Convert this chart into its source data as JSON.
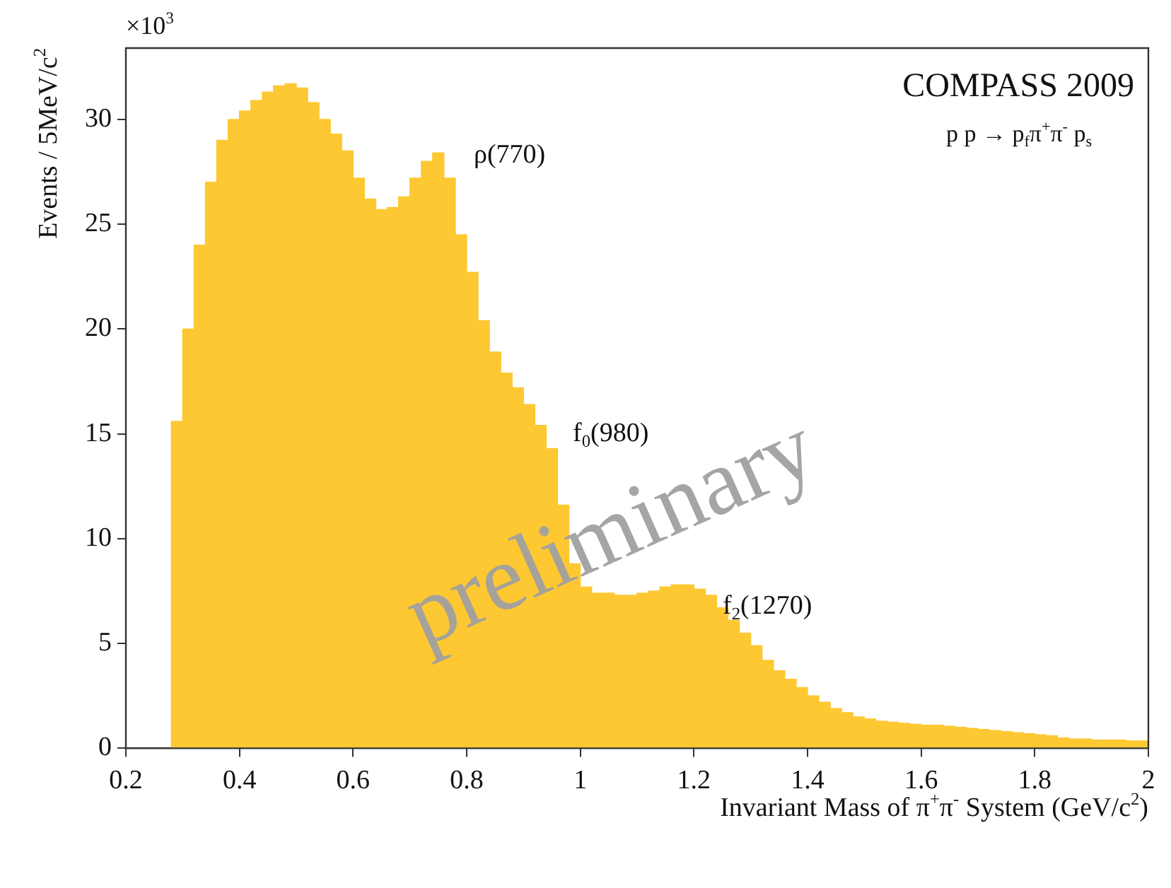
{
  "chart_data": {
    "type": "histogram",
    "ylabel": "Events / 5MeV/c$^{2}$",
    "xlabel": "Invariant Mass of π$^{+}$π$^{-}$ System (GeV/c$^{2}$)",
    "bins": [
      0.28,
      0.3,
      0.32,
      0.34,
      0.36,
      0.38,
      0.4,
      0.42,
      0.44,
      0.46,
      0.48,
      0.5,
      0.52,
      0.54,
      0.56,
      0.58,
      0.6,
      0.62,
      0.64,
      0.66,
      0.68,
      0.7,
      0.72,
      0.74,
      0.76,
      0.78,
      0.8,
      0.82,
      0.84,
      0.86,
      0.88,
      0.9,
      0.92,
      0.94,
      0.96,
      0.98,
      1.0,
      1.02,
      1.04,
      1.06,
      1.08,
      1.1,
      1.12,
      1.14,
      1.16,
      1.18,
      1.2,
      1.22,
      1.24,
      1.26,
      1.28,
      1.3,
      1.32,
      1.34,
      1.36,
      1.38,
      1.4,
      1.42,
      1.44,
      1.46,
      1.48,
      1.5,
      1.52,
      1.54,
      1.56,
      1.58,
      1.6,
      1.62,
      1.64,
      1.66,
      1.68,
      1.7,
      1.72,
      1.74,
      1.76,
      1.78,
      1.8,
      1.82,
      1.84,
      1.86,
      1.88,
      1.9,
      1.92,
      1.94,
      1.96,
      1.98,
      2.0
    ],
    "values": [
      15.6,
      20,
      24,
      27,
      29,
      30,
      30.4,
      30.9,
      31.3,
      31.6,
      31.7,
      31.5,
      30.8,
      30,
      29.3,
      28.5,
      27.2,
      26.2,
      25.7,
      25.8,
      26.3,
      27.2,
      28,
      28.4,
      27.2,
      24.5,
      22.7,
      20.4,
      18.9,
      17.9,
      17.2,
      16.4,
      15.4,
      14.3,
      11.6,
      8.8,
      7.7,
      7.4,
      7.4,
      7.3,
      7.3,
      7.4,
      7.5,
      7.7,
      7.8,
      7.8,
      7.6,
      7.3,
      6.7,
      6.1,
      5.5,
      4.9,
      4.2,
      3.7,
      3.3,
      2.9,
      2.5,
      2.2,
      1.9,
      1.7,
      1.5,
      1.4,
      1.3,
      1.25,
      1.2,
      1.15,
      1.1,
      1.1,
      1.05,
      1.0,
      0.95,
      0.9,
      0.85,
      0.8,
      0.75,
      0.7,
      0.65,
      0.6,
      0.5,
      0.45,
      0.45,
      0.4,
      0.4,
      0.4,
      0.35,
      0.35
    ],
    "color": "#fdc832",
    "xlim": [
      0.2,
      2.0
    ],
    "xticks": [
      0.2,
      0.4,
      0.6,
      0.8,
      1,
      1.2,
      1.4,
      1.6,
      1.8,
      2
    ],
    "ylim": [
      0,
      33.4
    ],
    "yticks": [
      0,
      5,
      10,
      15,
      20,
      25,
      30
    ],
    "grid": false,
    "legend": false,
    "annotations": [
      "×10$^{3}$",
      "COMPASS 2009",
      "p p → p$_{f}$π$^{+}$π$^{-}$ p$_{s}$",
      "preliminary",
      "ρ(770)",
      "f$_{0}$(980)",
      "f$_{2}$(1270)"
    ]
  }
}
